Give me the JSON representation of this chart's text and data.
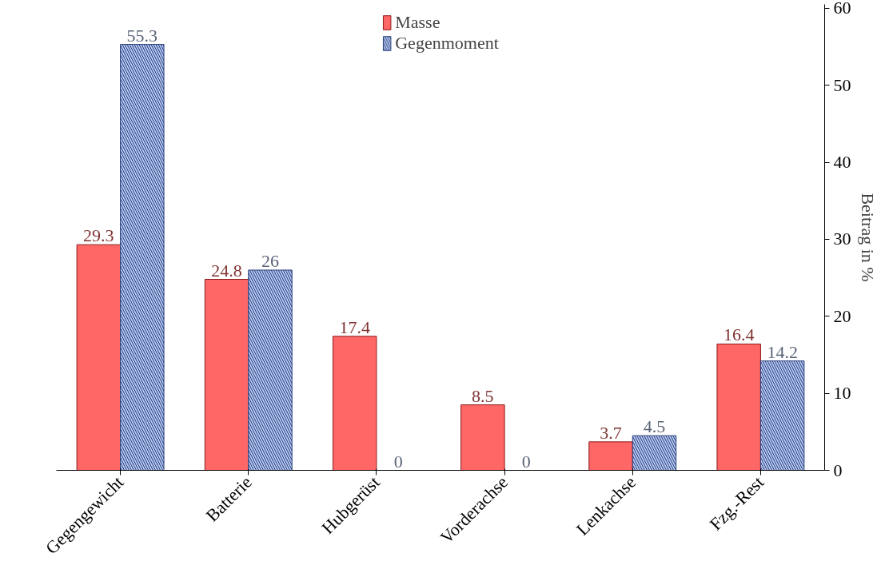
{
  "chart_data": {
    "type": "bar",
    "categories": [
      "Gegengewicht",
      "Batterie",
      "Hubgerüst",
      "Vorderachse",
      "Lenkachse",
      "Fzg.-Rest"
    ],
    "ylabel": "Beitrag in %",
    "ylim": [
      0,
      60.5
    ],
    "yticks": [
      0,
      10,
      20,
      30,
      40,
      50,
      60
    ],
    "grid": false,
    "legend": "top",
    "data_labels": true,
    "series": [
      {
        "name": "Masse",
        "color": "#ff6666",
        "values": [
          29.3,
          24.8,
          17.4,
          8.5,
          3.7,
          16.4
        ]
      },
      {
        "name": "Gegenmoment",
        "color": "#b3c6f0",
        "values": [
          55.3,
          26,
          0,
          0,
          4.5,
          14.2
        ]
      }
    ]
  }
}
